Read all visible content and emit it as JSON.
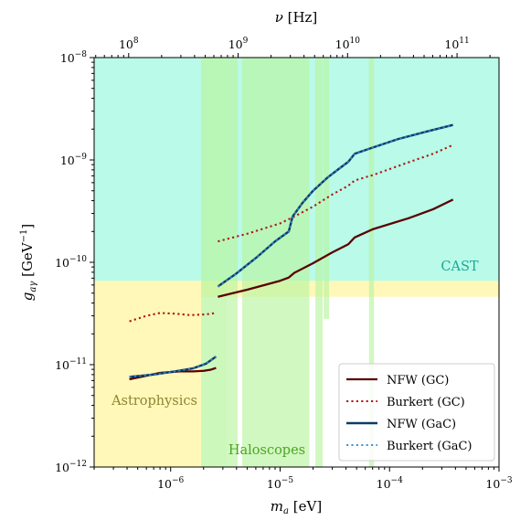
{
  "chart_data": {
    "type": "line",
    "xlabel": "m_a [eV]",
    "ylabel": "g_aγ [GeV⁻¹]",
    "top_xlabel": "ν [Hz]",
    "xscale": "log",
    "yscale": "log",
    "xlim": [
      2e-07,
      0.001
    ],
    "ylim": [
      1e-12,
      1e-08
    ],
    "x_ticks": [
      {
        "value": 1e-06,
        "base": "10",
        "exp": "−6"
      },
      {
        "value": 1e-05,
        "base": "10",
        "exp": "−5"
      },
      {
        "value": 0.0001,
        "base": "10",
        "exp": "−4"
      },
      {
        "value": 0.001,
        "base": "10",
        "exp": "−3"
      }
    ],
    "y_ticks": [
      {
        "value": 1e-12,
        "base": "10",
        "exp": "−12"
      },
      {
        "value": 1e-11,
        "base": "10",
        "exp": "−11"
      },
      {
        "value": 1e-10,
        "base": "10",
        "exp": "−10"
      },
      {
        "value": 1e-09,
        "base": "10",
        "exp": "−9"
      },
      {
        "value": 1e-08,
        "base": "10",
        "exp": "−8"
      }
    ],
    "top_ticks": [
      {
        "value": 100000000.0,
        "base": "10",
        "exp": "8"
      },
      {
        "value": 1000000000.0,
        "base": "10",
        "exp": "9"
      },
      {
        "value": 10000000000.0,
        "base": "10",
        "exp": "10"
      },
      {
        "value": 100000000000.0,
        "base": "10",
        "exp": "11"
      }
    ],
    "hz_per_ev": 241800000000000.0,
    "regions": [
      {
        "name": "CAST",
        "color": "#7ff5d6",
        "alpha": 0.55,
        "label_color": "#1aa89a",
        "polygon": [
          [
            2e-07,
            6.6e-11
          ],
          [
            0.001,
            6.6e-11
          ],
          [
            0.001,
            1e-08
          ],
          [
            2e-07,
            1e-08
          ]
        ]
      },
      {
        "name": "Astrophysics",
        "color": "#fff38a",
        "alpha": 0.6,
        "label_color": "#8c8430",
        "polygon": [
          [
            2e-07,
            1e-12
          ],
          [
            2e-07,
            6.6e-11
          ],
          [
            0.001,
            6.6e-11
          ],
          [
            0.001,
            4.6e-11
          ],
          [
            1.9e-06,
            4.6e-11
          ],
          [
            1.9e-06,
            1e-12
          ]
        ]
      },
      {
        "name": "Haloscopes",
        "color": "#b8f5a0",
        "alpha": 0.7,
        "label_color": "#4aa520",
        "polygon": [
          [
            1.9e-06,
            1e-12
          ],
          [
            1.9e-06,
            1e-08
          ],
          [
            3.3e-06,
            1e-08
          ],
          [
            3.3e-06,
            1e-12
          ]
        ]
      }
    ],
    "haloscope_bands": [
      [
        3.3e-06,
        4.1e-06,
        1e-12
      ],
      [
        4.5e-06,
        1.85e-05,
        1e-12
      ],
      [
        2.1e-05,
        2.45e-05,
        1e-12
      ],
      [
        2.5e-05,
        2.8e-05,
        2.8e-11
      ],
      [
        3.3e-05,
        3.6e-05,
        1e-08
      ],
      [
        3.9e-05,
        4.4e-05,
        1e-08
      ],
      [
        4.8e-05,
        5.2e-05,
        1e-08
      ],
      [
        6.5e-05,
        7.2e-05,
        1e-12
      ],
      [
        0.000115,
        0.00012,
        1e-08
      ]
    ],
    "series": [
      {
        "name": "NFW (GC)",
        "color": "#5a0000",
        "dash": "solid",
        "width": 2.3,
        "segments": [
          {
            "x": [
              4.2e-07,
              8e-07,
              1.2e-06,
              1.6e-06,
              2e-06,
              2.3e-06,
              2.6e-06
            ],
            "y": [
              7.2e-12,
              8.3e-12,
              8.6e-12,
              8.6e-12,
              8.7e-12,
              8.9e-12,
              9.3e-12
            ]
          },
          {
            "x": [
              2.7e-06,
              5e-06,
              1e-05,
              1.2e-05,
              1.35e-05,
              2e-05,
              3e-05,
              4.2e-05,
              4.8e-05,
              7e-05,
              0.00015,
              0.00025,
              0.00038
            ],
            "y": [
              4.6e-11,
              5.4e-11,
              6.6e-11,
              7.1e-11,
              7.9e-11,
              9.8e-11,
              1.25e-10,
              1.5e-10,
              1.75e-10,
              2.1e-10,
              2.7e-10,
              3.3e-10,
              4.1e-10
            ]
          }
        ]
      },
      {
        "name": "Burkert (GC)",
        "color": "#b01818",
        "dash": "dotted",
        "width": 2.1,
        "segments": [
          {
            "x": [
              4.2e-07,
              6e-07,
              8e-07,
              1.1e-06,
              1.5e-06,
              2.1e-06,
              2.6e-06
            ],
            "y": [
              2.65e-11,
              3e-11,
              3.2e-11,
              3.15e-11,
              3.05e-11,
              3.1e-11,
              3.2e-11
            ]
          },
          {
            "x": [
              2.7e-06,
              5e-06,
              1e-05,
              1.35e-05,
              2e-05,
              3e-05,
              4.2e-05,
              4.8e-05,
              7e-05,
              0.00015,
              0.00025,
              0.00038
            ],
            "y": [
              1.6e-10,
              1.9e-10,
              2.4e-10,
              2.8e-10,
              3.5e-10,
              4.6e-10,
              5.6e-10,
              6.3e-10,
              7.1e-10,
              9.5e-10,
              1.15e-09,
              1.4e-09
            ]
          }
        ]
      },
      {
        "name": "NFW (GaC)",
        "color": "#0f3a66",
        "dash": "solid",
        "width": 2.4,
        "segments": [
          {
            "x": [
              4.2e-07,
              7e-07,
              1.1e-06,
              1.6e-06,
              2.1e-06,
              2.6e-06
            ],
            "y": [
              7.6e-12,
              8e-12,
              8.6e-12,
              9.2e-12,
              1.02e-11,
              1.2e-11
            ]
          },
          {
            "x": [
              2.7e-06,
              4e-06,
              6e-06,
              9e-06,
              1.2e-05,
              1.3e-05,
              1.6e-05,
              2e-05,
              2.7e-05,
              3.4e-05,
              4.2e-05,
              4.8e-05,
              7e-05,
              0.00012,
              0.00022,
              0.00038
            ],
            "y": [
              5.8e-11,
              7.8e-11,
              1.1e-10,
              1.6e-10,
              2e-10,
              2.8e-10,
              3.8e-10,
              5e-10,
              6.7e-10,
              8.1e-10,
              9.6e-10,
              1.15e-09,
              1.32e-09,
              1.6e-09,
              1.9e-09,
              2.2e-09
            ]
          }
        ]
      },
      {
        "name": "Burkert (GaC)",
        "color": "#2b88c8",
        "dash": "dotted",
        "width": 1.8,
        "segments": [
          {
            "x": [
              4.2e-07,
              7e-07,
              1.1e-06,
              1.6e-06,
              2.1e-06,
              2.6e-06
            ],
            "y": [
              7.6e-12,
              8e-12,
              8.6e-12,
              9.2e-12,
              1.02e-11,
              1.2e-11
            ]
          },
          {
            "x": [
              2.7e-06,
              4e-06,
              6e-06,
              9e-06,
              1.2e-05,
              1.3e-05,
              1.6e-05,
              2e-05,
              2.7e-05,
              3.4e-05,
              4.2e-05,
              4.8e-05,
              7e-05,
              0.00012,
              0.00022,
              0.00038
            ],
            "y": [
              5.8e-11,
              7.8e-11,
              1.1e-10,
              1.6e-10,
              2e-10,
              2.8e-10,
              3.8e-10,
              5e-10,
              6.7e-10,
              8.1e-10,
              9.6e-10,
              1.15e-09,
              1.32e-09,
              1.6e-09,
              1.9e-09,
              2.2e-09
            ]
          }
        ]
      }
    ],
    "legend": {
      "position": "lower-right"
    }
  }
}
